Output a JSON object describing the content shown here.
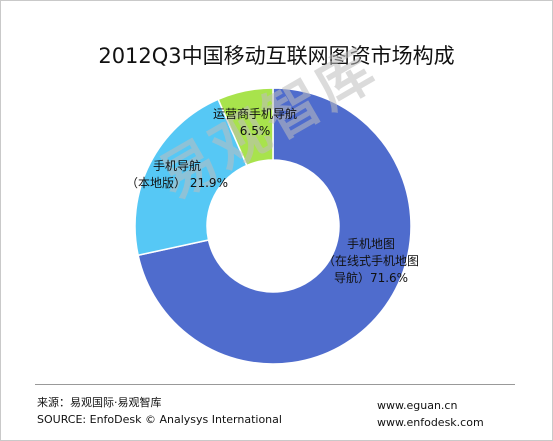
{
  "chart_data": {
    "type": "pie",
    "title": "2012Q3中国移动互联网图资市场构成",
    "donut": true,
    "slices": [
      {
        "name": "手机地图（在线式手机地图导航）",
        "value": 71.6,
        "color": "#4f6ccd",
        "label_lines": [
          "手机地图",
          "（在线式手机地图",
          "导航）71.6%"
        ]
      },
      {
        "name": "手机导航（本地版）",
        "value": 21.9,
        "color": "#56c8f5",
        "label_lines": [
          "手机导航",
          "（本地版） 21.9%"
        ]
      },
      {
        "name": "运营商手机导航",
        "value": 6.5,
        "color": "#a8e34c",
        "label_lines": [
          "运营商手机导航",
          "6.5%"
        ]
      }
    ]
  },
  "watermark": "易观智库",
  "footer": {
    "source_cn": "来源：易观国际·易观智库",
    "source_en": "SOURCE:  EnfoDesk © Analysys International",
    "url1": "www.eguan.cn",
    "url2": "www.enfodesk.com"
  }
}
